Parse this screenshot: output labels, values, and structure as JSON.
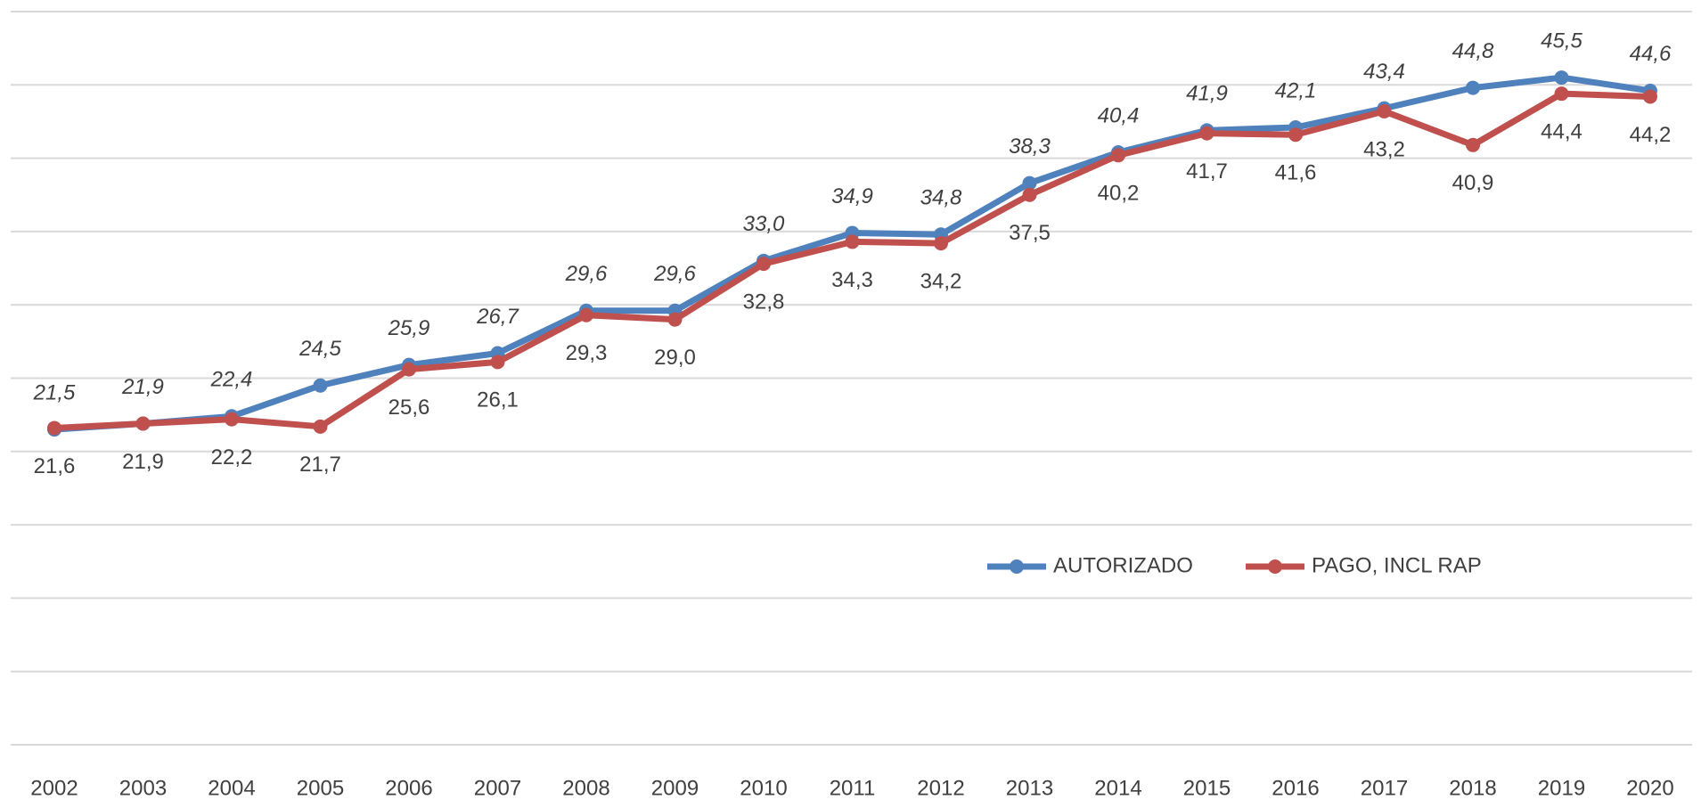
{
  "chart_data": {
    "type": "line",
    "categories": [
      "2002",
      "2003",
      "2004",
      "2005",
      "2006",
      "2007",
      "2008",
      "2009",
      "2010",
      "2011",
      "2012",
      "2013",
      "2014",
      "2015",
      "2016",
      "2017",
      "2018",
      "2019",
      "2020"
    ],
    "series": [
      {
        "name": "AUTORIZADO",
        "color": "#4f81bd",
        "values": [
          21.5,
          21.9,
          22.4,
          24.5,
          25.9,
          26.7,
          29.6,
          29.6,
          33.0,
          34.9,
          34.8,
          38.3,
          40.4,
          41.9,
          42.1,
          43.4,
          44.8,
          45.5,
          44.6
        ],
        "value_labels": [
          "21,5",
          "21,9",
          "22,4",
          "24,5",
          "25,9",
          "26,7",
          "29,6",
          "29,6",
          "33,0",
          "34,9",
          "34,8",
          "38,3",
          "40,4",
          "41,9",
          "42,1",
          "43,4",
          "44,8",
          "45,5",
          "44,6"
        ]
      },
      {
        "name": "PAGO, INCL RAP",
        "color": "#c0504d",
        "values": [
          21.6,
          21.9,
          22.2,
          21.7,
          25.6,
          26.1,
          29.3,
          29.0,
          32.8,
          34.3,
          34.2,
          37.5,
          40.2,
          41.7,
          41.6,
          43.2,
          40.9,
          44.4,
          44.2
        ],
        "value_labels": [
          "21,6",
          "21,9",
          "22,2",
          "21,7",
          "25,6",
          "26,1",
          "29,3",
          "29,0",
          "32,8",
          "34,3",
          "34,2",
          "37,5",
          "40,2",
          "41,7",
          "41,6",
          "43,2",
          "40,9",
          "44,4",
          "44,2"
        ]
      }
    ],
    "ylim": [
      0,
      50
    ],
    "yticks": [
      0,
      5,
      10,
      15,
      20,
      25,
      30,
      35,
      40,
      45,
      50
    ],
    "grid": true
  }
}
